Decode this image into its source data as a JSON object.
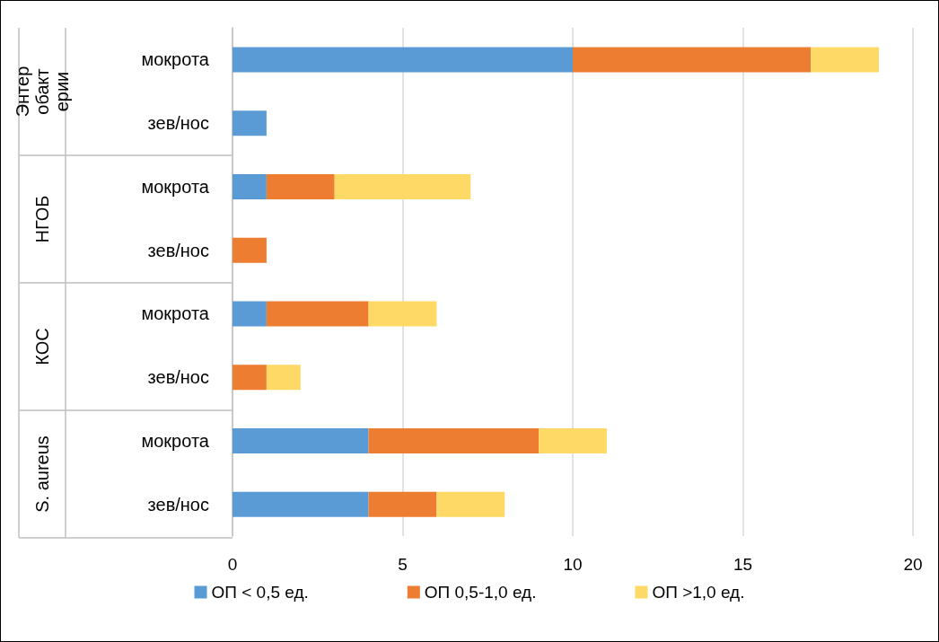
{
  "chart_data": {
    "type": "bar",
    "orientation": "horizontal",
    "stacked": true,
    "categories": [
      "мокрота",
      "зев/нос",
      "мокрота",
      "зев/нос",
      "мокрота",
      "зев/нос",
      "мокрота",
      "зев/нос"
    ],
    "annotations": [
      "Энтеробактерии",
      "НГОБ",
      "КОС",
      "S. aureus"
    ],
    "series": [
      {
        "name": "ОП < 0,5 ед.",
        "color": "#5b9bd5",
        "values": [
          10,
          1,
          1,
          0,
          1,
          0,
          4,
          4
        ]
      },
      {
        "name": "ОП 0,5-1,0 ед.",
        "color": "#ed7d31",
        "values": [
          7,
          0,
          2,
          1,
          3,
          1,
          5,
          2
        ]
      },
      {
        "name": "ОП >1,0 ед.",
        "color": "#ffd966",
        "values": [
          2,
          0,
          4,
          0,
          2,
          1,
          2,
          2
        ]
      }
    ],
    "xlim": [
      0,
      20
    ],
    "xticks": [
      0,
      5,
      10,
      15,
      20
    ],
    "grid": "x",
    "legend": "bottom"
  }
}
